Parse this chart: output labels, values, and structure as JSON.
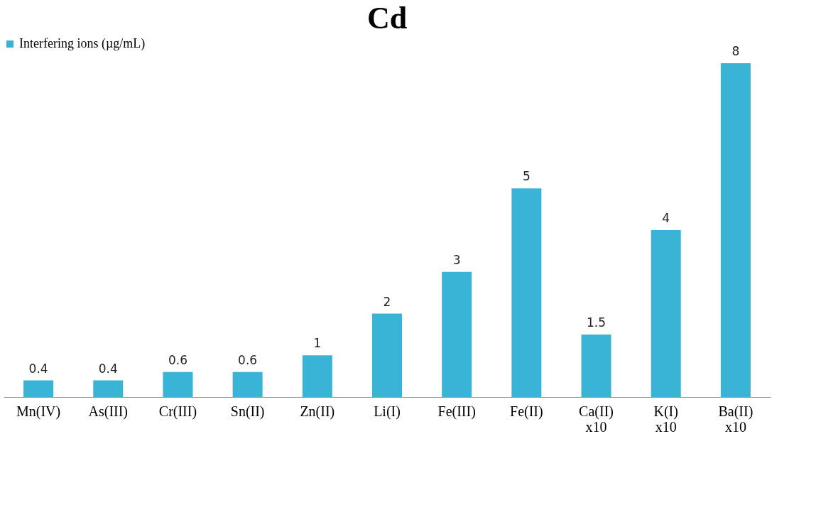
{
  "chart_data": {
    "type": "bar",
    "title": "Cd",
    "categories": [
      "Mn(IV)",
      "As(III)",
      "Cr(III)",
      "Sn(II)",
      "Zn(II)",
      "Li(I)",
      "Fe(III)",
      "Fe(II)",
      "Ca(II)\nx10",
      "K(I)\nx10",
      "Ba(II)\nx10"
    ],
    "series": [
      {
        "name": "Interfering ions (µg/mL)",
        "color": "#3ab4d6",
        "values": [
          0.4,
          0.4,
          0.6,
          0.6,
          1,
          2,
          3,
          5,
          1.5,
          4,
          8
        ]
      }
    ],
    "data_labels": true,
    "legend": "top",
    "grid": false
  }
}
